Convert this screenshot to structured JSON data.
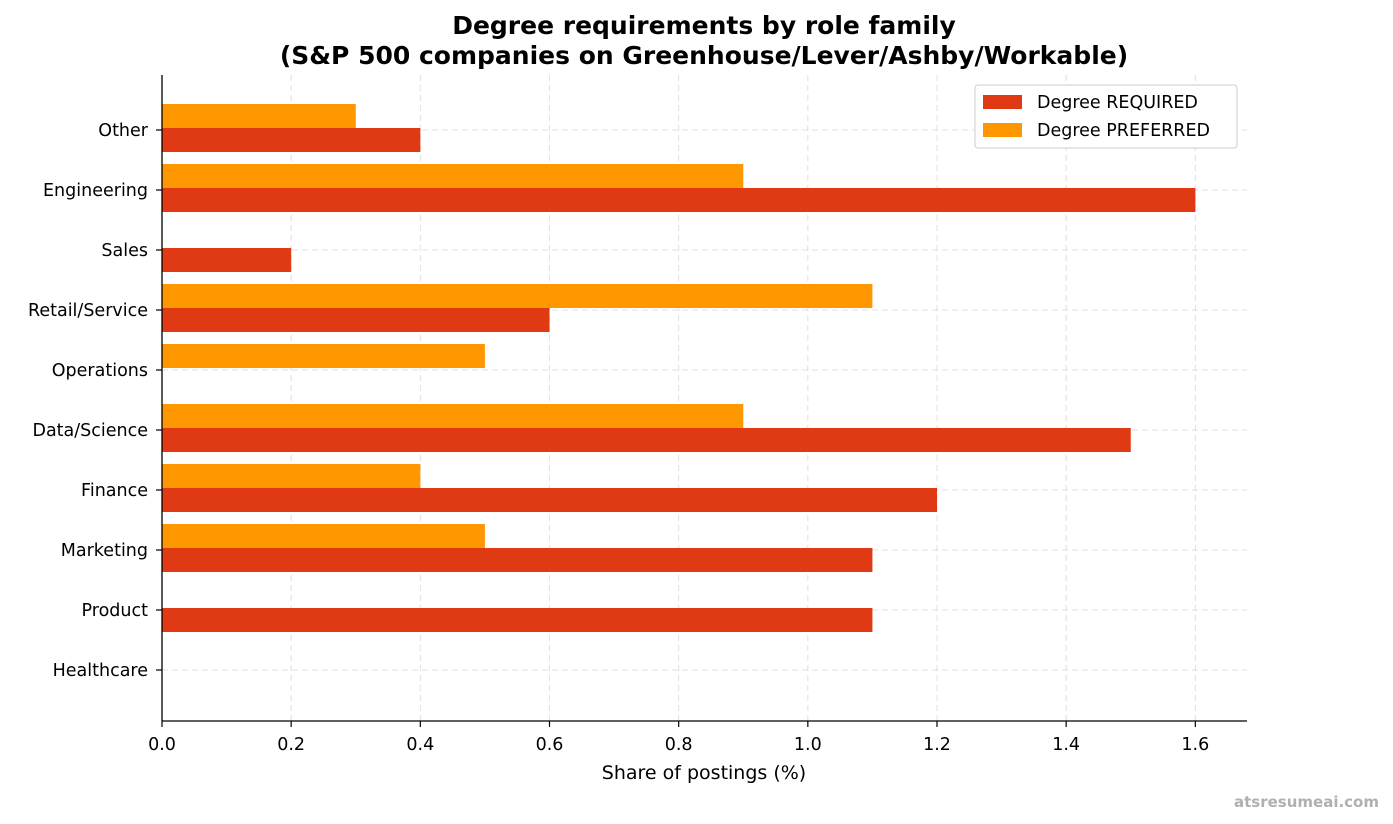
{
  "chart_data": {
    "type": "bar",
    "orientation": "horizontal",
    "title": "Degree requirements by role family",
    "subtitle": "(S&P 500 companies on Greenhouse/Lever/Ashby/Workable)",
    "xlabel": "Share of postings (%)",
    "ylabel": "",
    "xlim": [
      0,
      1.68
    ],
    "xticks": [
      0.0,
      0.2,
      0.4,
      0.6,
      0.8,
      1.0,
      1.2,
      1.4,
      1.6
    ],
    "xtick_labels": [
      "0.0",
      "0.2",
      "0.4",
      "0.6",
      "0.8",
      "1.0",
      "1.2",
      "1.4",
      "1.6"
    ],
    "grid": true,
    "legend_position": "top-right",
    "categories": [
      "Other",
      "Engineering",
      "Sales",
      "Retail/Service",
      "Operations",
      "Data/Science",
      "Finance",
      "Marketing",
      "Product",
      "Healthcare"
    ],
    "series": [
      {
        "name": "Degree REQUIRED",
        "color": "#e03a14",
        "values": [
          0.4,
          1.6,
          0.2,
          0.6,
          0.0,
          1.5,
          1.2,
          1.1,
          1.1,
          0.0
        ]
      },
      {
        "name": "Degree PREFERRED",
        "color": "#ff9800",
        "values": [
          0.3,
          0.9,
          0.0,
          1.1,
          0.5,
          0.9,
          0.4,
          0.5,
          0.0,
          0.0
        ]
      }
    ]
  },
  "watermark": "atsresumeai.com"
}
